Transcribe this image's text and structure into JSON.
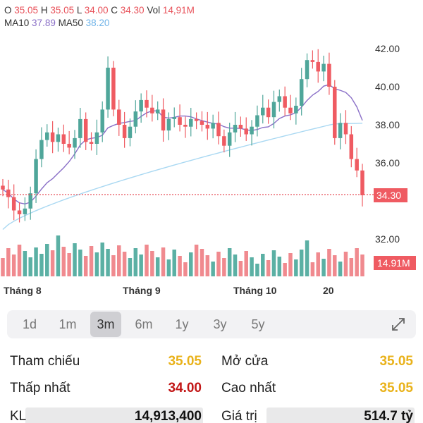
{
  "header": {
    "o_label": "O",
    "o_value": "35.05",
    "h_label": "H",
    "h_value": "35.05",
    "l_label": "L",
    "l_value": "34.00",
    "c_label": "C",
    "c_value": "34.30",
    "vol_label": "Vol",
    "vol_value": "14,91M",
    "ma10_label": "MA10",
    "ma10_value": "37.89",
    "ma50_label": "MA50",
    "ma50_value": "38.20"
  },
  "colors": {
    "up": "#4fa69a",
    "down": "#ef5b62",
    "ma10": "#8a6fc7",
    "ma50": "#a9d8f2",
    "price_line": "#e8525a",
    "yellow": "#e9b21a",
    "darkred": "#c21616"
  },
  "chart_data": {
    "type": "candlestick",
    "y_ticks": [
      "42.00",
      "40.00",
      "38.00",
      "36.00",
      "32.00"
    ],
    "ylim": [
      31.5,
      42.5
    ],
    "x_ticks": [
      "Tháng 8",
      "Tháng 9",
      "Tháng 10",
      "20"
    ],
    "last_price_label": "34.30",
    "last_volume_label": "14.91M",
    "ma_labels": [
      "MA10",
      "MA50"
    ]
  },
  "ranges": [
    {
      "label": "1d",
      "active": false
    },
    {
      "label": "1m",
      "active": false
    },
    {
      "label": "3m",
      "active": true
    },
    {
      "label": "6m",
      "active": false
    },
    {
      "label": "1y",
      "active": false
    },
    {
      "label": "3y",
      "active": false
    },
    {
      "label": "5y",
      "active": false
    }
  ],
  "stats": {
    "tham_chieu_label": "Tham chiếu",
    "tham_chieu_value": "35.05",
    "mo_cua_label": "Mở cửa",
    "mo_cua_value": "35.05",
    "thap_nhat_label": "Thấp nhất",
    "thap_nhat_value": "34.00",
    "cao_nhat_label": "Cao nhất",
    "cao_nhat_value": "35.05",
    "kl_label": "KL",
    "kl_value": "14,913,400",
    "gia_tri_label": "Giá trị",
    "gia_tri_value": "514.7 tỷ"
  }
}
